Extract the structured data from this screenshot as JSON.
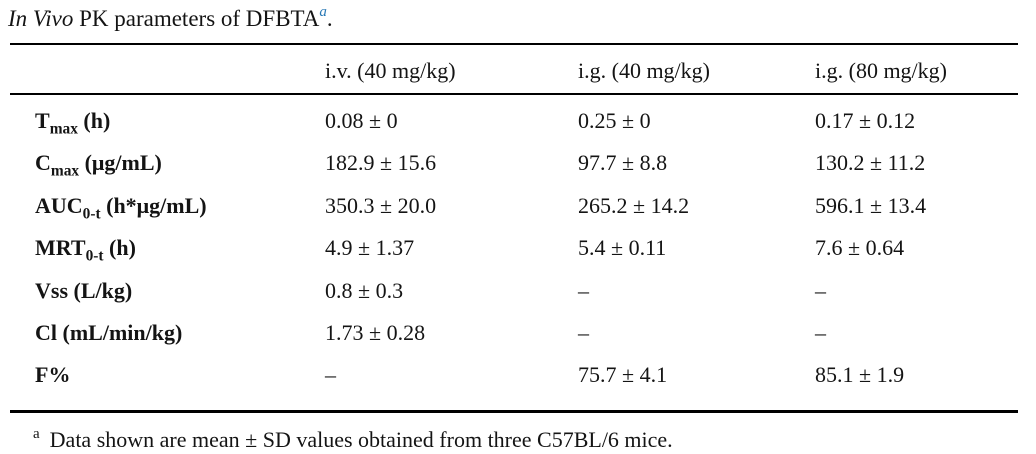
{
  "colors": {
    "text": "#141414",
    "rule": "#000000",
    "link_blue": "#2878b5"
  },
  "title": {
    "italic": "In Vivo",
    "text": " PK parameters of DFBTA",
    "footnote_marker": "a",
    "period": "."
  },
  "table": {
    "columns": [
      "i.v. (40 mg/kg)",
      "i.g. (40 mg/kg)",
      "i.g. (80 mg/kg)"
    ],
    "rows": [
      {
        "label": {
          "base": "T",
          "sub": "max",
          "unit": " (h)"
        },
        "values": [
          "0.08 ± 0",
          "0.25 ± 0",
          "0.17 ± 0.12"
        ]
      },
      {
        "label": {
          "base": "C",
          "sub": "max",
          "unit": " (μg/mL)"
        },
        "values": [
          "182.9 ± 15.6",
          "97.7 ± 8.8",
          "130.2 ± 11.2"
        ]
      },
      {
        "label": {
          "base": "AUC",
          "sub": "0-t",
          "unit": " (h*μg/mL)"
        },
        "values": [
          "350.3 ± 20.0",
          "265.2 ± 14.2",
          "596.1 ± 13.4"
        ]
      },
      {
        "label": {
          "base": "MRT",
          "sub": "0-t",
          "unit": " (h)"
        },
        "values": [
          "4.9 ± 1.37",
          "5.4 ± 0.11",
          "7.6 ± 0.64"
        ]
      },
      {
        "label": {
          "base": "Vss",
          "sub": "",
          "unit": " (L/kg)"
        },
        "values": [
          "0.8 ± 0.3",
          "–",
          "–"
        ]
      },
      {
        "label": {
          "base": "Cl",
          "sub": "",
          "unit": " (mL/min/kg)"
        },
        "values": [
          "1.73 ± 0.28",
          "–",
          "–"
        ]
      },
      {
        "label": {
          "base": "F%",
          "sub": "",
          "unit": ""
        },
        "values": [
          "–",
          "75.7 ± 4.1",
          "85.1 ± 1.9"
        ]
      }
    ]
  },
  "footnote": {
    "marker": "a",
    "text": "Data shown are mean ± SD values obtained from three C57BL/6 mice."
  }
}
